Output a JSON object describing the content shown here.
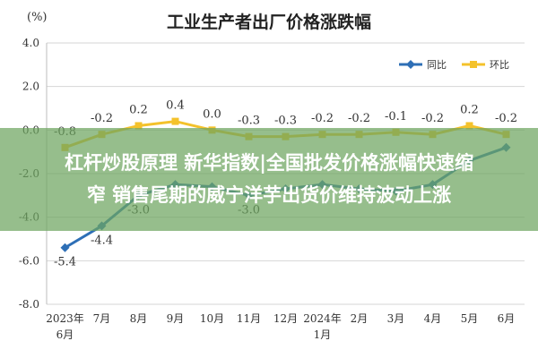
{
  "chart_data": {
    "type": "line",
    "title": "工业生产者出厂价格涨跌幅",
    "y_unit": "(%)",
    "categories": [
      "2023年\n6月",
      "7月",
      "8月",
      "9月",
      "10月",
      "11月",
      "12月",
      "2024年\n1月",
      "2月",
      "3月",
      "4月",
      "5月",
      "6月"
    ],
    "series": [
      {
        "name": "同比",
        "color": "#2e6fb6",
        "marker": "diamond",
        "values": [
          -5.4,
          -4.4,
          -3.0,
          -2.5,
          -2.6,
          -3.0,
          -2.7,
          -2.5,
          -2.7,
          -2.8,
          -2.5,
          -1.4,
          -0.8
        ],
        "labels": [
          "-5.4",
          "-4.4",
          "-3.0",
          "",
          "",
          "-3.0",
          "",
          "",
          "",
          "",
          "",
          "",
          ""
        ]
      },
      {
        "name": "环比",
        "color": "#f4c22b",
        "marker": "square",
        "values": [
          -0.8,
          -0.2,
          0.2,
          0.4,
          0.0,
          -0.3,
          -0.3,
          -0.2,
          -0.2,
          -0.1,
          -0.2,
          0.2,
          -0.2
        ],
        "labels": [
          "-0.8",
          "-0.2",
          "0.2",
          "0.4",
          "0.0",
          "-0.3",
          "-0.3",
          "-0.2",
          "-0.2",
          "-0.1",
          "-0.2",
          "0.2",
          "-0.2"
        ]
      }
    ],
    "ylim": [
      -8.0,
      4.0
    ],
    "yticks": [
      "4.0",
      "2.0",
      "0.0",
      "-2.0",
      "-4.0",
      "-6.0",
      "-8.0"
    ],
    "grid": true,
    "legend_position": "top-right"
  },
  "banner": {
    "line1": "杠杆炒股原理 新华指数|全国批发价格涨幅快速缩",
    "line2": "窄 销售尾期的威宁洋芋出货价维持波动上涨"
  }
}
